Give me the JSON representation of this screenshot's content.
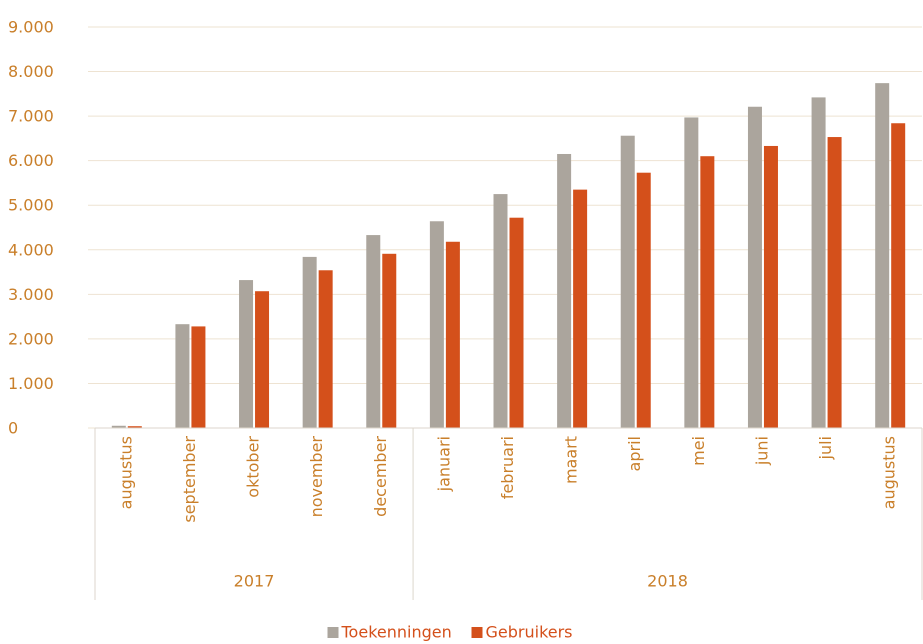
{
  "chart_data": {
    "type": "bar",
    "groups": [
      {
        "label": "2017",
        "categories": [
          "augustus",
          "september",
          "oktober",
          "november",
          "december"
        ]
      },
      {
        "label": "2018",
        "categories": [
          "januari",
          "februari",
          "maart",
          "april",
          "mei",
          "juni",
          "juli",
          "augustus"
        ]
      }
    ],
    "series": [
      {
        "name": "Toekenningen",
        "color": "#aba59d",
        "values": [
          50,
          2330,
          3320,
          3840,
          4330,
          4640,
          5250,
          6150,
          6560,
          6970,
          7210,
          7420,
          7740
        ]
      },
      {
        "name": "Gebruikers",
        "color": "#d4501b",
        "values": [
          40,
          2280,
          3070,
          3540,
          3910,
          4180,
          4720,
          5350,
          5730,
          6100,
          6330,
          6530,
          6840
        ]
      }
    ],
    "ylim": [
      0,
      9000
    ],
    "yticks": [
      0,
      {
        "value": 1000,
        "label": "1.000"
      },
      {
        "value": 2000,
        "label": "2.000"
      },
      {
        "value": 3000,
        "label": "3.000"
      },
      {
        "value": 4000,
        "label": "4.000"
      },
      {
        "value": 5000,
        "label": "5.000"
      },
      {
        "value": 6000,
        "label": "6.000"
      },
      {
        "value": 7000,
        "label": "7.000"
      },
      {
        "value": 8000,
        "label": "8.000"
      },
      {
        "value": 9000,
        "label": "9.000"
      }
    ],
    "grid": true,
    "legend": "bottom"
  }
}
